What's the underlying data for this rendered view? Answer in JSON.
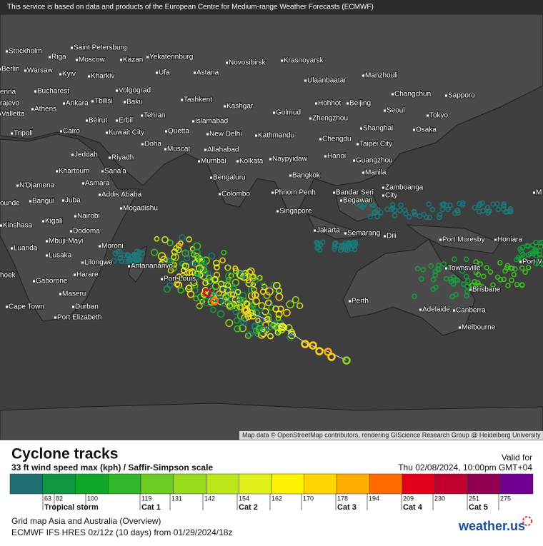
{
  "notice": "This service is based on data and products of the European Centre for Medium-range Weather Forecasts (ECMWF)",
  "map_labels": [
    "Stockholm",
    "Saint Petersburg",
    "Riga",
    "Moscow",
    "Kazan",
    "Yekaterinburg",
    "Novosibirsk",
    "Krasnoyarsk",
    "Berlin",
    "Warsaw",
    "Kyiv",
    "Kharkiv",
    "Ufa",
    "Astana",
    "Ulaanbaatar",
    "Manzhouli",
    "enna",
    "Bucharest",
    "Volgograd",
    "Changchun",
    "Sapporo",
    "rajevo",
    "Tbilisi",
    "Baku",
    "Tashkent",
    "Kashgar",
    "Hohhot",
    "Beijing",
    "Athens",
    "Ankara",
    "Seoul",
    "Valletta",
    "Tehran",
    "Golmud",
    "Zhengzhou",
    "Tokyo",
    "Beirut",
    "Erbil",
    "Islamabad",
    "Tripoli",
    "Cairo",
    "Kuwait City",
    "Quetta",
    "New Delhi",
    "Kathmandu",
    "Chengdu",
    "Shanghai",
    "Osaka",
    "Doha",
    "Muscat",
    "Jeddah",
    "Riyadh",
    "Allahabad",
    "Naypyidaw",
    "Hanoi",
    "Taipei City",
    "Guangzhou",
    "Khartoum",
    "Sana'a",
    "Mumbai",
    "Kolkata",
    "Bengaluru",
    "Manila",
    "N'Djamena",
    "Asmara",
    "Addis Ababa",
    "Bangkok",
    "Colombo",
    "Zamboanga",
    "City",
    "Phnom Penh",
    "Bandar Seri",
    "Begawan",
    "ounde",
    "Bangui",
    "Juba",
    "Mogadishu",
    "Singapore",
    "Nairobi",
    "Kigali",
    "Kinshasa",
    "Dodoma",
    "Jakarta",
    "Semarang",
    "Dili",
    "Port Moresby",
    "Honiara",
    "Mbuji-Mayi",
    "Moroni",
    "Luanda",
    "Lusaka",
    "Lilongwe",
    "Antananarivo",
    "Townsville",
    "Port V",
    "hoek",
    "Harare",
    "Port Louis",
    "Gaborone",
    "Brisbane",
    "Maseru",
    "Perth",
    "Durban",
    "Cape Town",
    "Adelaide",
    "Canberra",
    "Port Elizabeth",
    "Melbourne",
    "M"
  ],
  "attribution": "Map data © OpenStreetMap contributors, rendering GIScience Research Group @ Heidelberg University",
  "legend": {
    "title": "Cyclone tracks",
    "subtitle": "33 ft wind speed max (kph) / Saffir-Simpson scale",
    "valid_label": "Valid for",
    "valid_time": "Thu 02/08/2024, 10:00pm GMT+04",
    "scale_values": [
      "63",
      "82",
      "100",
      "119",
      "131",
      "142",
      "154",
      "162",
      "170",
      "178",
      "194",
      "209",
      "230",
      "251",
      "275"
    ],
    "categories": [
      "Tropical storm",
      "Cat 1",
      "Cat 2",
      "Cat 3",
      "Cat 4",
      "Cat 5"
    ],
    "description": "Grid map Asia and Australia (Overview)",
    "model_run": "ECMWF IFS HRES 0z/12z (10 days) from  01/29/2024/18z",
    "brand": "weather.us"
  }
}
